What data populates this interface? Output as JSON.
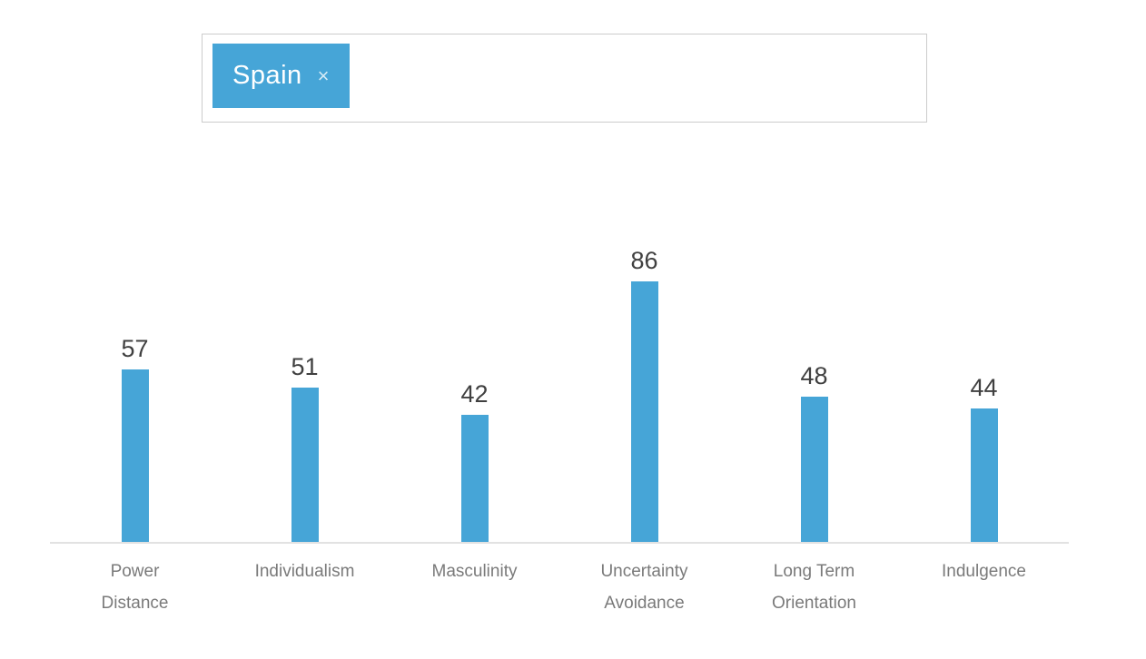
{
  "tag_input": {
    "chip_color": "#46a5d7",
    "selected_tags": [
      {
        "label": "Spain",
        "remove_icon": "×"
      }
    ]
  },
  "chart_data": {
    "type": "bar",
    "title": "",
    "xlabel": "",
    "ylabel": "",
    "categories": [
      "Power Distance",
      "Individualism",
      "Masculinity",
      "Uncertainty Avoidance",
      "Long Term Orientation",
      "Indulgence"
    ],
    "categories_wrapped": [
      [
        "Power",
        "Distance"
      ],
      [
        "Individualism"
      ],
      [
        "Masculinity"
      ],
      [
        "Uncertainty",
        "Avoidance"
      ],
      [
        "Long Term",
        "Orientation"
      ],
      [
        "Indulgence"
      ]
    ],
    "series": [
      {
        "name": "Spain",
        "values": [
          57,
          51,
          42,
          86,
          48,
          44
        ]
      }
    ],
    "values": [
      57,
      51,
      42,
      86,
      48,
      44
    ],
    "ylim": [
      0,
      100
    ],
    "grid": false,
    "legend": "none",
    "bar_color": "#46a5d7",
    "value_label_color": "#404040",
    "category_label_color": "#7a7a7a",
    "axis_line_color": "#e2e2e2"
  }
}
